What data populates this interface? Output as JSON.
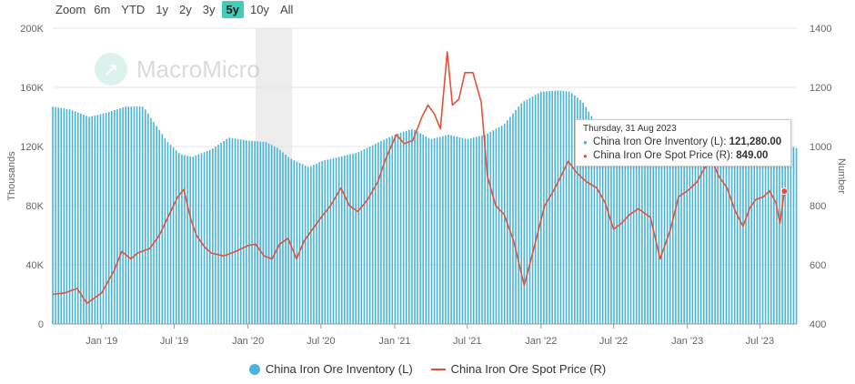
{
  "zoom": {
    "label": "Zoom",
    "buttons": [
      "6m",
      "YTD",
      "1y",
      "2y",
      "3y",
      "5y",
      "10y",
      "All"
    ],
    "active": "5y"
  },
  "watermark": "MacroMicro",
  "tooltip": {
    "date": "Thursday, 31 Aug 2023",
    "inventory_label": "China Iron Ore Inventory (L):",
    "inventory_value": "121,280.00",
    "price_label": "China Iron Ore Spot Price (R):",
    "price_value": "849.00"
  },
  "legend": {
    "inventory": "China Iron Ore Inventory (L)",
    "price": "China Iron Ore Spot Price (R)"
  },
  "chart_data": {
    "type": "bar",
    "x_tick_labels": [
      "Jan '19",
      "Jul '19",
      "Jan '20",
      "Jul '20",
      "Jan '21",
      "Jul '21",
      "Jan '22",
      "Jul '22",
      "Jan '23",
      "Jul '23"
    ],
    "ylabel_left": "Thousands",
    "ylabel_right": "Number",
    "y_left_ticks": [
      "0",
      "40K",
      "80K",
      "120K",
      "160K",
      "200K"
    ],
    "y_left_range": [
      0,
      200000
    ],
    "y_right_ticks": [
      "400",
      "600",
      "800",
      "1000",
      "1200",
      "1400"
    ],
    "y_right_range": [
      400,
      1400
    ],
    "grid": true,
    "legend_position": "bottom",
    "colors": {
      "inventory": "#47b5d9",
      "price": "#e0533a",
      "shade": "#ededed"
    },
    "shaded_period": [
      "2020-01-20",
      "2020-04-20"
    ],
    "highlight_date": "2023-08-31",
    "series": [
      {
        "name": "China Iron Ore Inventory (L)",
        "axis": "left",
        "kind": "bar",
        "points": [
          [
            "2018-09-01",
            147000
          ],
          [
            "2018-10-15",
            145000
          ],
          [
            "2018-12-01",
            140000
          ],
          [
            "2019-01-15",
            143000
          ],
          [
            "2019-03-01",
            147000
          ],
          [
            "2019-04-15",
            147000
          ],
          [
            "2019-05-15",
            135000
          ],
          [
            "2019-06-15",
            123000
          ],
          [
            "2019-07-15",
            115000
          ],
          [
            "2019-08-15",
            113000
          ],
          [
            "2019-10-01",
            118000
          ],
          [
            "2019-11-15",
            126000
          ],
          [
            "2020-01-01",
            124000
          ],
          [
            "2020-02-15",
            123000
          ],
          [
            "2020-03-15",
            119000
          ],
          [
            "2020-04-15",
            112000
          ],
          [
            "2020-06-01",
            106000
          ],
          [
            "2020-07-01",
            110000
          ],
          [
            "2020-08-15",
            113000
          ],
          [
            "2020-10-01",
            116000
          ],
          [
            "2020-11-15",
            122000
          ],
          [
            "2021-01-01",
            128000
          ],
          [
            "2021-02-15",
            132000
          ],
          [
            "2021-04-01",
            125000
          ],
          [
            "2021-05-15",
            128000
          ],
          [
            "2021-07-01",
            125000
          ],
          [
            "2021-08-15",
            128000
          ],
          [
            "2021-10-01",
            135000
          ],
          [
            "2021-11-15",
            150000
          ],
          [
            "2022-01-01",
            157000
          ],
          [
            "2022-02-15",
            158000
          ],
          [
            "2022-03-15",
            157000
          ],
          [
            "2022-04-15",
            150000
          ],
          [
            "2022-06-01",
            130000
          ],
          [
            "2022-07-15",
            129000
          ],
          [
            "2022-09-01",
            130000
          ],
          [
            "2022-10-15",
            132000
          ],
          [
            "2022-12-01",
            133000
          ],
          [
            "2023-01-15",
            135000
          ],
          [
            "2023-02-15",
            138000
          ],
          [
            "2023-04-01",
            132000
          ],
          [
            "2023-05-15",
            125000
          ],
          [
            "2023-07-01",
            121000
          ],
          [
            "2023-08-31",
            121280
          ],
          [
            "2023-09-30",
            119000
          ]
        ]
      },
      {
        "name": "China Iron Ore Spot Price (R)",
        "axis": "right",
        "kind": "line",
        "points": [
          [
            "2018-09-01",
            500
          ],
          [
            "2018-10-01",
            505
          ],
          [
            "2018-11-01",
            520
          ],
          [
            "2018-11-25",
            470
          ],
          [
            "2019-01-01",
            505
          ],
          [
            "2019-02-01",
            580
          ],
          [
            "2019-02-20",
            645
          ],
          [
            "2019-03-15",
            620
          ],
          [
            "2019-04-01",
            640
          ],
          [
            "2019-05-01",
            655
          ],
          [
            "2019-05-25",
            700
          ],
          [
            "2019-06-15",
            760
          ],
          [
            "2019-07-10",
            830
          ],
          [
            "2019-07-25",
            855
          ],
          [
            "2019-08-10",
            760
          ],
          [
            "2019-08-25",
            700
          ],
          [
            "2019-09-15",
            660
          ],
          [
            "2019-10-01",
            640
          ],
          [
            "2019-11-01",
            630
          ],
          [
            "2019-12-01",
            645
          ],
          [
            "2020-01-01",
            665
          ],
          [
            "2020-01-20",
            670
          ],
          [
            "2020-02-10",
            630
          ],
          [
            "2020-03-01",
            620
          ],
          [
            "2020-03-20",
            670
          ],
          [
            "2020-04-10",
            690
          ],
          [
            "2020-05-01",
            620
          ],
          [
            "2020-05-20",
            680
          ],
          [
            "2020-06-10",
            720
          ],
          [
            "2020-07-01",
            760
          ],
          [
            "2020-07-25",
            800
          ],
          [
            "2020-08-20",
            860
          ],
          [
            "2020-09-10",
            800
          ],
          [
            "2020-10-01",
            780
          ],
          [
            "2020-10-25",
            820
          ],
          [
            "2020-11-20",
            880
          ],
          [
            "2020-12-10",
            960
          ],
          [
            "2021-01-05",
            1040
          ],
          [
            "2021-01-25",
            1010
          ],
          [
            "2021-02-15",
            1020
          ],
          [
            "2021-03-10",
            1100
          ],
          [
            "2021-03-25",
            1140
          ],
          [
            "2021-04-10",
            1110
          ],
          [
            "2021-04-25",
            1060
          ],
          [
            "2021-05-12",
            1320
          ],
          [
            "2021-05-25",
            1140
          ],
          [
            "2021-06-10",
            1160
          ],
          [
            "2021-06-25",
            1250
          ],
          [
            "2021-07-15",
            1250
          ],
          [
            "2021-08-05",
            1150
          ],
          [
            "2021-08-20",
            900
          ],
          [
            "2021-09-10",
            800
          ],
          [
            "2021-10-01",
            770
          ],
          [
            "2021-10-25",
            680
          ],
          [
            "2021-11-20",
            530
          ],
          [
            "2021-12-15",
            660
          ],
          [
            "2022-01-10",
            800
          ],
          [
            "2022-02-01",
            850
          ],
          [
            "2022-02-20",
            900
          ],
          [
            "2022-03-10",
            950
          ],
          [
            "2022-04-01",
            910
          ],
          [
            "2022-04-25",
            880
          ],
          [
            "2022-05-20",
            860
          ],
          [
            "2022-06-10",
            810
          ],
          [
            "2022-07-01",
            720
          ],
          [
            "2022-07-20",
            740
          ],
          [
            "2022-08-10",
            770
          ],
          [
            "2022-09-01",
            790
          ],
          [
            "2022-10-01",
            760
          ],
          [
            "2022-10-25",
            620
          ],
          [
            "2022-11-20",
            720
          ],
          [
            "2022-12-10",
            830
          ],
          [
            "2023-01-01",
            850
          ],
          [
            "2023-01-25",
            880
          ],
          [
            "2023-02-10",
            920
          ],
          [
            "2023-03-01",
            960
          ],
          [
            "2023-03-20",
            900
          ],
          [
            "2023-04-10",
            860
          ],
          [
            "2023-05-01",
            780
          ],
          [
            "2023-05-20",
            730
          ],
          [
            "2023-06-05",
            790
          ],
          [
            "2023-06-20",
            820
          ],
          [
            "2023-07-10",
            830
          ],
          [
            "2023-07-25",
            850
          ],
          [
            "2023-08-10",
            810
          ],
          [
            "2023-08-20",
            740
          ],
          [
            "2023-08-31",
            849
          ],
          [
            "2023-09-10",
            850
          ]
        ]
      }
    ]
  }
}
